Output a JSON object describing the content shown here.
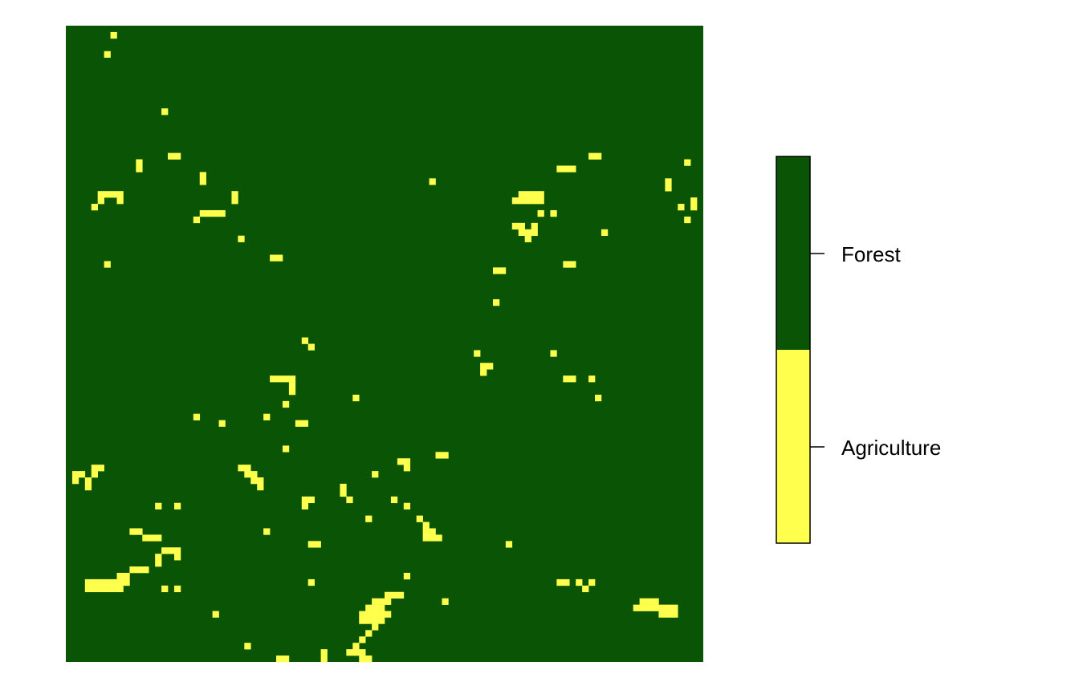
{
  "map": {
    "type": "categorical-raster",
    "grid": {
      "columns": 100,
      "rows": 100
    },
    "background_class": "Forest",
    "agriculture_cells_note": "",
    "agriculture_cells": [
      [
        7,
        1
      ],
      [
        6,
        4
      ],
      [
        15,
        13
      ],
      [
        16,
        20
      ],
      [
        17,
        20
      ],
      [
        11,
        21
      ],
      [
        11,
        22
      ],
      [
        21,
        23
      ],
      [
        21,
        24
      ],
      [
        5,
        26
      ],
      [
        6,
        26
      ],
      [
        7,
        26
      ],
      [
        8,
        26
      ],
      [
        5,
        27
      ],
      [
        8,
        27
      ],
      [
        4,
        28
      ],
      [
        26,
        26
      ],
      [
        26,
        27
      ],
      [
        21,
        29
      ],
      [
        22,
        29
      ],
      [
        23,
        29
      ],
      [
        24,
        29
      ],
      [
        20,
        30
      ],
      [
        6,
        37
      ],
      [
        27,
        33
      ],
      [
        32,
        36
      ],
      [
        33,
        36
      ],
      [
        57,
        24
      ],
      [
        82,
        20
      ],
      [
        83,
        20
      ],
      [
        77,
        22
      ],
      [
        78,
        22
      ],
      [
        79,
        22
      ],
      [
        71,
        26
      ],
      [
        72,
        26
      ],
      [
        73,
        26
      ],
      [
        74,
        26
      ],
      [
        70,
        27
      ],
      [
        71,
        27
      ],
      [
        72,
        27
      ],
      [
        73,
        27
      ],
      [
        74,
        27
      ],
      [
        74,
        29
      ],
      [
        70,
        31
      ],
      [
        71,
        31
      ],
      [
        73,
        31
      ],
      [
        76,
        29
      ],
      [
        71,
        32
      ],
      [
        72,
        32
      ],
      [
        73,
        32
      ],
      [
        72,
        33
      ],
      [
        84,
        32
      ],
      [
        78,
        37
      ],
      [
        79,
        37
      ],
      [
        67,
        38
      ],
      [
        68,
        38
      ],
      [
        67,
        43
      ],
      [
        97,
        21
      ],
      [
        94,
        24
      ],
      [
        94,
        25
      ],
      [
        96,
        28
      ],
      [
        98,
        27
      ],
      [
        98,
        28
      ],
      [
        97,
        30
      ],
      [
        37,
        49
      ],
      [
        38,
        50
      ],
      [
        64,
        51
      ],
      [
        76,
        51
      ],
      [
        65,
        53
      ],
      [
        66,
        53
      ],
      [
        65,
        54
      ],
      [
        32,
        55
      ],
      [
        33,
        55
      ],
      [
        34,
        55
      ],
      [
        35,
        55
      ],
      [
        35,
        56
      ],
      [
        35,
        57
      ],
      [
        78,
        55
      ],
      [
        79,
        55
      ],
      [
        82,
        55
      ],
      [
        45,
        58
      ],
      [
        34,
        59
      ],
      [
        83,
        58
      ],
      [
        20,
        61
      ],
      [
        31,
        61
      ],
      [
        24,
        62
      ],
      [
        36,
        62
      ],
      [
        37,
        62
      ],
      [
        34,
        66
      ],
      [
        58,
        67
      ],
      [
        59,
        67
      ],
      [
        52,
        68
      ],
      [
        53,
        68
      ],
      [
        53,
        69
      ],
      [
        1,
        70
      ],
      [
        2,
        70
      ],
      [
        4,
        69
      ],
      [
        5,
        69
      ],
      [
        4,
        70
      ],
      [
        3,
        71
      ],
      [
        1,
        71
      ],
      [
        3,
        72
      ],
      [
        27,
        69
      ],
      [
        28,
        69
      ],
      [
        28,
        70
      ],
      [
        29,
        70
      ],
      [
        29,
        71
      ],
      [
        30,
        71
      ],
      [
        30,
        72
      ],
      [
        48,
        70
      ],
      [
        43,
        72
      ],
      [
        43,
        73
      ],
      [
        44,
        74
      ],
      [
        37,
        74
      ],
      [
        38,
        74
      ],
      [
        37,
        75
      ],
      [
        14,
        75
      ],
      [
        17,
        75
      ],
      [
        51,
        74
      ],
      [
        53,
        75
      ],
      [
        47,
        77
      ],
      [
        55,
        77
      ],
      [
        56,
        78
      ],
      [
        56,
        79
      ],
      [
        57,
        79
      ],
      [
        56,
        80
      ],
      [
        57,
        80
      ],
      [
        58,
        80
      ],
      [
        31,
        79
      ],
      [
        10,
        79
      ],
      [
        11,
        79
      ],
      [
        12,
        80
      ],
      [
        13,
        80
      ],
      [
        14,
        80
      ],
      [
        38,
        81
      ],
      [
        39,
        81
      ],
      [
        69,
        81
      ],
      [
        15,
        82
      ],
      [
        16,
        82
      ],
      [
        17,
        82
      ],
      [
        14,
        83
      ],
      [
        17,
        83
      ],
      [
        14,
        84
      ],
      [
        8,
        86
      ],
      [
        9,
        86
      ],
      [
        10,
        85
      ],
      [
        11,
        85
      ],
      [
        12,
        85
      ],
      [
        3,
        87
      ],
      [
        4,
        87
      ],
      [
        5,
        87
      ],
      [
        6,
        87
      ],
      [
        7,
        87
      ],
      [
        8,
        87
      ],
      [
        9,
        87
      ],
      [
        3,
        88
      ],
      [
        4,
        88
      ],
      [
        5,
        88
      ],
      [
        6,
        88
      ],
      [
        7,
        88
      ],
      [
        8,
        88
      ],
      [
        15,
        88
      ],
      [
        17,
        88
      ],
      [
        38,
        87
      ],
      [
        53,
        86
      ],
      [
        77,
        87
      ],
      [
        78,
        87
      ],
      [
        80,
        87
      ],
      [
        82,
        87
      ],
      [
        81,
        88
      ],
      [
        50,
        89
      ],
      [
        51,
        89
      ],
      [
        52,
        89
      ],
      [
        48,
        90
      ],
      [
        49,
        90
      ],
      [
        50,
        90
      ],
      [
        59,
        90
      ],
      [
        47,
        91
      ],
      [
        48,
        91
      ],
      [
        49,
        91
      ],
      [
        46,
        92
      ],
      [
        47,
        92
      ],
      [
        48,
        92
      ],
      [
        49,
        92
      ],
      [
        50,
        92
      ],
      [
        23,
        92
      ],
      [
        46,
        93
      ],
      [
        47,
        93
      ],
      [
        48,
        93
      ],
      [
        49,
        93
      ],
      [
        48,
        94
      ],
      [
        47,
        95
      ],
      [
        90,
        90
      ],
      [
        91,
        90
      ],
      [
        92,
        90
      ],
      [
        89,
        91
      ],
      [
        90,
        91
      ],
      [
        91,
        91
      ],
      [
        92,
        91
      ],
      [
        93,
        91
      ],
      [
        94,
        91
      ],
      [
        95,
        91
      ],
      [
        93,
        92
      ],
      [
        94,
        92
      ],
      [
        95,
        92
      ],
      [
        28,
        97
      ],
      [
        46,
        96
      ],
      [
        45,
        97
      ],
      [
        44,
        98
      ],
      [
        45,
        98
      ],
      [
        46,
        98
      ],
      [
        40,
        98
      ],
      [
        40,
        99
      ],
      [
        33,
        99
      ],
      [
        34,
        99
      ],
      [
        46,
        99
      ],
      [
        47,
        99
      ]
    ],
    "plot_area_name": "raster-map"
  },
  "legend": {
    "classes": [
      {
        "label": "Forest",
        "color": "#0A5505"
      },
      {
        "label": "Agriculture",
        "color": "#FFFF4D"
      }
    ],
    "border_color": "#000000"
  }
}
